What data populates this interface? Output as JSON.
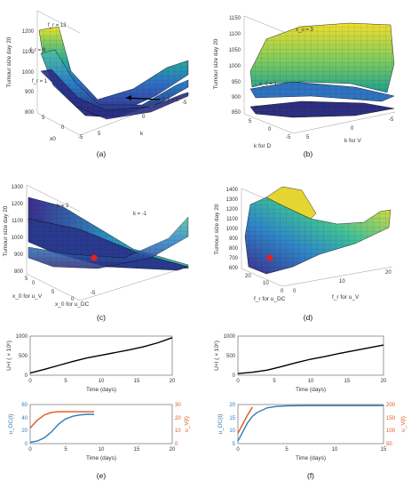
{
  "panels": {
    "a": {
      "caption": "(a)",
      "zlabel": "Tumour size day 20",
      "xlabel": "x0",
      "ylabel": "k",
      "zticks": [
        "800",
        "900",
        "1000",
        "1100",
        "1200"
      ],
      "xticks": [
        "5",
        "0",
        "-5"
      ],
      "yticks": [
        "5",
        "0",
        "-5"
      ],
      "annotations": [
        "f_r = 13",
        "f_r = 9",
        "f_r = 1",
        "f_r = 5"
      ]
    },
    "b": {
      "caption": "(b)",
      "zlabel": "Tumour size day 20",
      "xlabel": "k for D",
      "ylabel": "k for V",
      "zticks": [
        "850",
        "900",
        "950",
        "1000",
        "1050",
        "1100",
        "1150"
      ],
      "xticks": [
        "5",
        "0",
        "-5"
      ],
      "yticks": [
        "5",
        "0",
        "-5"
      ],
      "annotations": [
        "x_o = 3",
        "x_o = 1",
        "x_o = -1"
      ]
    },
    "c": {
      "caption": "(c)",
      "zlabel": "Tumour size day 20",
      "xlabel": "x_0 for u_DC",
      "ylabel": "x_0 for u_V",
      "zticks": [
        "800",
        "900",
        "1000",
        "1100",
        "1200",
        "1300"
      ],
      "xticks": [
        "5",
        "0",
        "-5"
      ],
      "yticks": [
        "0",
        "5"
      ],
      "annotations": [
        "k = 3",
        "k = 1",
        "k = -1"
      ]
    },
    "d": {
      "caption": "(d)",
      "zlabel": "Tumour size day 20",
      "xlabel": "f_r for u_DC",
      "ylabel": "f_r for u_V",
      "zticks": [
        "600",
        "700",
        "800",
        "900",
        "1000",
        "1100",
        "1200",
        "1300",
        "1400"
      ],
      "xticks": [
        "20",
        "10",
        "0"
      ],
      "yticks": [
        "0",
        "10",
        "20"
      ],
      "annotations": []
    },
    "e": {
      "caption": "(e)",
      "top": {
        "ylabel": "U+I ( × 10⁶)",
        "xlabel": "Time (days)",
        "xticks": [
          "0",
          "5",
          "10",
          "15",
          "20"
        ],
        "yticks": [
          "0",
          "500",
          "1000"
        ]
      },
      "bottom": {
        "xlabel": "Time (days)",
        "ylabel_left": "u_DC(t)",
        "ylabel_right": "u_V(t)",
        "xticks": [
          "0",
          "5",
          "10",
          "15",
          "20"
        ],
        "yticks_left": [
          "0",
          "20",
          "40",
          "60"
        ],
        "yticks_right": [
          "0",
          "10",
          "20",
          "30"
        ]
      }
    },
    "f": {
      "caption": "(f)",
      "top": {
        "ylabel": "U+I ( × 10⁶)",
        "xlabel": "Time (days)",
        "xticks": [
          "0",
          "5",
          "10",
          "15",
          "20"
        ],
        "yticks": [
          "0",
          "500",
          "1000"
        ]
      },
      "bottom": {
        "xlabel": "Time (days)",
        "ylabel_left": "u_DC(t)",
        "ylabel_right": "u_V(t)",
        "xticks": [
          "0",
          "5",
          "10",
          "15"
        ],
        "yticks_left": [
          "5",
          "10",
          "15",
          "20"
        ],
        "yticks_right": [
          "50",
          "100",
          "150",
          "200"
        ]
      }
    }
  },
  "colors": {
    "line_black": "#000000",
    "line_blue": "#2e7ab8",
    "line_orange": "#e0541c",
    "marker_red": "#e8201c",
    "surf_low": "#3b2f8f",
    "surf_mid": "#27a8a0",
    "surf_high": "#f3e32a"
  },
  "chart_data": [
    {
      "panel": "e-top",
      "type": "line",
      "xlabel": "Time (days)",
      "ylabel": "U+I ( × 10⁶)",
      "xlim": [
        0,
        20
      ],
      "ylim": [
        0,
        1000
      ],
      "series": [
        {
          "x": [
            0,
            2,
            4,
            6,
            8,
            10,
            12,
            14,
            16,
            18,
            20
          ],
          "values": [
            55,
            150,
            250,
            350,
            440,
            510,
            580,
            650,
            730,
            830,
            960
          ]
        }
      ]
    },
    {
      "panel": "e-bottom",
      "type": "line",
      "xlabel": "Time (days)",
      "ylabel": "u_DC(t)",
      "xlim": [
        0,
        20
      ],
      "ylim": [
        0,
        60
      ],
      "y2label": "u_V(t)",
      "y2lim": [
        0,
        30
      ],
      "series": [
        {
          "axis": "left",
          "x": [
            0,
            1,
            2,
            3,
            4,
            5,
            6,
            7,
            8,
            9
          ],
          "values": [
            2,
            4,
            9,
            18,
            30,
            38,
            42,
            44,
            45,
            45
          ]
        },
        {
          "axis": "right",
          "x": [
            0,
            1,
            2,
            3,
            4,
            5,
            6,
            7,
            8,
            9
          ],
          "values": [
            12,
            18,
            22,
            24,
            24.5,
            24.5,
            24.5,
            24.5,
            24.5,
            24.5
          ]
        }
      ]
    },
    {
      "panel": "f-top",
      "type": "line",
      "xlabel": "Time (days)",
      "ylabel": "U+I ( × 10⁶)",
      "xlim": [
        0,
        20
      ],
      "ylim": [
        0,
        1000
      ],
      "series": [
        {
          "x": [
            0,
            2,
            4,
            6,
            8,
            10,
            12,
            14,
            16,
            18,
            20
          ],
          "values": [
            40,
            75,
            130,
            220,
            320,
            410,
            480,
            560,
            630,
            700,
            770
          ]
        }
      ]
    },
    {
      "panel": "f-bottom",
      "type": "line",
      "xlabel": "Time (days)",
      "ylabel": "u_DC(t)",
      "xlim": [
        0,
        15
      ],
      "ylim": [
        5,
        20
      ],
      "y2label": "u_V(t)",
      "y2lim": [
        50,
        200
      ],
      "series": [
        {
          "axis": "left",
          "x": [
            0,
            0.5,
            1,
            1.5,
            2,
            3,
            4,
            5,
            7,
            10,
            15
          ],
          "values": [
            6,
            9.5,
            13,
            15.5,
            17,
            18.7,
            19.3,
            19.5,
            19.6,
            19.6,
            19.6
          ]
        },
        {
          "axis": "right",
          "x": [
            0,
            0.5,
            1,
            1.5
          ],
          "values": [
            90,
            125,
            160,
            190
          ]
        }
      ]
    }
  ]
}
